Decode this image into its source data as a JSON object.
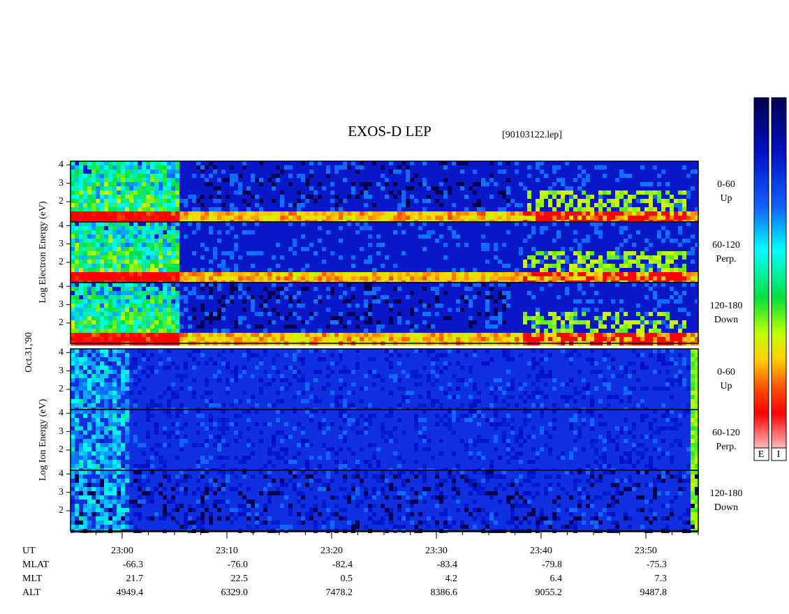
{
  "header": {
    "title": "EXOS-D LEP",
    "file": "[90103122.lep]",
    "date": "Oct.31,'90"
  },
  "groups": [
    {
      "label": "Log Electron Energy (eV)",
      "panels": [
        {
          "angle": "0-60",
          "direction": "Up"
        },
        {
          "angle": "60-120",
          "direction": "Perp."
        },
        {
          "angle": "120-180",
          "direction": "Down"
        }
      ]
    },
    {
      "label": "Log Ion Energy (eV)",
      "panels": [
        {
          "angle": "0-60",
          "direction": "Up"
        },
        {
          "angle": "60-120",
          "direction": "Perp."
        },
        {
          "angle": "120-180",
          "direction": "Down"
        }
      ]
    }
  ],
  "ylim": [
    0.9,
    4.2
  ],
  "yticks": [
    2,
    3,
    4
  ],
  "xlim": [
    1375.07,
    1435
  ],
  "xticks": [
    {
      "value": 1380,
      "label": "23:00"
    },
    {
      "value": 1390,
      "label": "23:10"
    },
    {
      "value": 1400,
      "label": "23:20"
    },
    {
      "value": 1410,
      "label": "23:30"
    },
    {
      "value": 1420,
      "label": "23:40"
    },
    {
      "value": 1430,
      "label": "23:50"
    }
  ],
  "ephemeris": [
    {
      "name": "UT"
    },
    {
      "name": "MLAT",
      "values": [
        "-66.3",
        "-76.0",
        "-82.4",
        "-83.4",
        "-79.8",
        "-75.3"
      ]
    },
    {
      "name": "MLT",
      "values": [
        "21.7",
        "22.5",
        "0.5",
        "4.2",
        "6.4",
        "7.3"
      ]
    },
    {
      "name": "ALT",
      "values": [
        "4949.4",
        "6329.0",
        "7478.2",
        "8386.6",
        "9055.2",
        "9487.8"
      ]
    }
  ],
  "colorbar": {
    "labels": [
      "E",
      "I"
    ]
  }
}
